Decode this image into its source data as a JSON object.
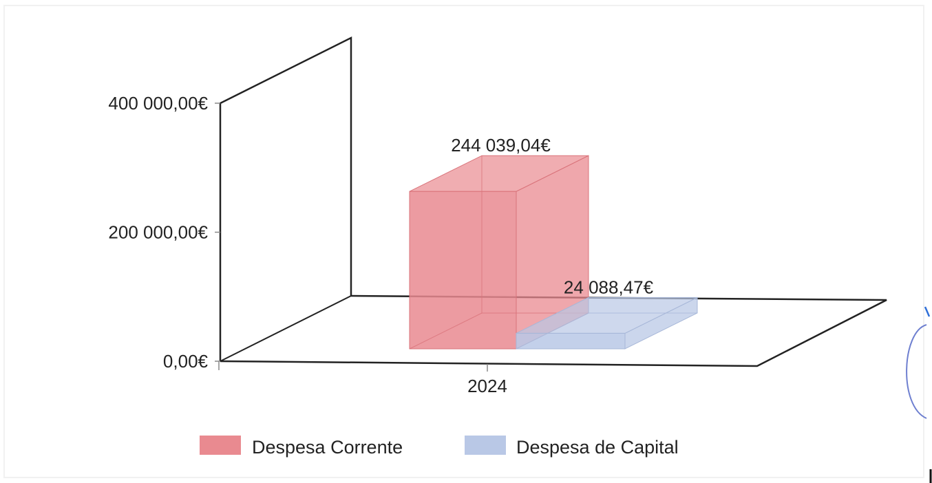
{
  "chart_data": {
    "type": "bar",
    "title": "",
    "xlabel": "",
    "ylabel": "",
    "categories": [
      "2024"
    ],
    "ylim": [
      0,
      500000
    ],
    "yticks": [
      {
        "value": 0,
        "label": "0,00€"
      },
      {
        "value": 200000,
        "label": "200 000,00€"
      },
      {
        "value": 400000,
        "label": "400 000,00€"
      }
    ],
    "series": [
      {
        "name": "Despesa Corrente",
        "values": [
          244039.04
        ],
        "value_labels": [
          "244 039,04€"
        ],
        "color": "#e98a90"
      },
      {
        "name": "Despesa de Capital",
        "values": [
          24088.47
        ],
        "value_labels": [
          "24 088,47€"
        ],
        "color": "#b9c8e6"
      }
    ],
    "legend_position": "bottom",
    "grid": false,
    "three_d": true
  }
}
